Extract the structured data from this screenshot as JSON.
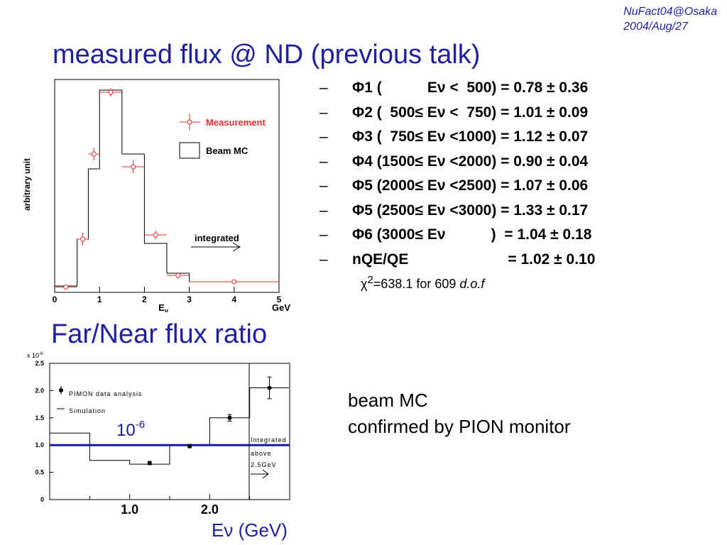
{
  "conference": {
    "line1": "NuFact04@Osaka",
    "line2": "2004/Aug/27"
  },
  "title": "measured flux @ ND (previous talk)",
  "section2_title": "Far/Near flux ratio",
  "colors": {
    "title": "#2020a0",
    "measurement": "#e03030",
    "mc_line": "#000000",
    "ratio_line": "#1a1aa0"
  },
  "bullets": [
    {
      "dash": "–",
      "text": "Φ1 (           Eν <  500) = 0.78 ± 0.36"
    },
    {
      "dash": "–",
      "text": "Φ2 (  500≤ Eν <  750) = 1.01 ± 0.09"
    },
    {
      "dash": "–",
      "text": "Φ3 (  750≤ Eν <1000) = 1.12 ± 0.07"
    },
    {
      "dash": "–",
      "text": "Φ4 (1500≤ Eν <2000) = 0.90 ± 0.04"
    },
    {
      "dash": "–",
      "text": "Φ5 (2000≤ Eν <2500) = 1.07 ± 0.06"
    },
    {
      "dash": "–",
      "text": "Φ5 (2500≤ Eν <3000) = 1.33 ± 0.17"
    },
    {
      "dash": "–",
      "text": "Φ6 (3000≤ Eν           )  = 1.04 ± 0.18"
    },
    {
      "dash": "–",
      "text": "nQE/QE                        = 1.02 ± 0.10"
    }
  ],
  "chi2": {
    "prefix": "χ",
    "sup": "2",
    "text": "=638.1 for 609 ",
    "dof": "d.o.f"
  },
  "note": {
    "line1": "beam MC",
    "line2": "confirmed by PION monitor"
  },
  "chart_data": [
    {
      "type": "bar",
      "ylabel": "arbitrary unit",
      "xlabel_main": "E",
      "xlabel_sub": "ν",
      "xunit": "GeV",
      "xlim": [
        0,
        5
      ],
      "ylim": [
        0,
        1.0
      ],
      "xticks": [
        "0",
        "1",
        "2",
        "3",
        "4",
        "5"
      ],
      "legend": [
        "Measurement",
        "Beam MC"
      ],
      "annotation": "integrated",
      "mc_bins": [
        {
          "x0": 0.0,
          "x1": 0.5,
          "y": 0.03
        },
        {
          "x0": 0.5,
          "x1": 0.75,
          "y": 0.25
        },
        {
          "x0": 0.75,
          "x1": 1.0,
          "y": 0.58
        },
        {
          "x0": 1.0,
          "x1": 1.5,
          "y": 0.95
        },
        {
          "x0": 1.5,
          "x1": 2.0,
          "y": 0.65
        },
        {
          "x0": 2.0,
          "x1": 2.5,
          "y": 0.23
        },
        {
          "x0": 2.5,
          "x1": 3.0,
          "y": 0.09
        },
        {
          "x0": 3.0,
          "x1": 5.0,
          "y": 0.05
        }
      ],
      "measurement": [
        {
          "x": 0.25,
          "y": 0.025,
          "xerr": 0.25,
          "yerr": 0.01
        },
        {
          "x": 0.625,
          "y": 0.25,
          "xerr": 0.125,
          "yerr": 0.03
        },
        {
          "x": 0.875,
          "y": 0.65,
          "xerr": 0.125,
          "yerr": 0.03
        },
        {
          "x": 1.25,
          "y": 0.94,
          "xerr": 0.25,
          "yerr": 0.02
        },
        {
          "x": 1.75,
          "y": 0.59,
          "xerr": 0.25,
          "yerr": 0.03
        },
        {
          "x": 2.25,
          "y": 0.27,
          "xerr": 0.25,
          "yerr": 0.02
        },
        {
          "x": 2.75,
          "y": 0.08,
          "xerr": 0.25,
          "yerr": 0.015
        },
        {
          "x": 4.0,
          "y": 0.05,
          "xerr": 1.0,
          "yerr": 0.0
        }
      ]
    },
    {
      "type": "bar",
      "yscale_label": "x 10",
      "yscale_exp": "-6",
      "ylim": [
        0,
        2.5
      ],
      "yticks": [
        "0",
        "0.5",
        "1.0",
        "1.5",
        "2.0",
        "2.5"
      ],
      "xticks": [
        "1.0",
        "2.0"
      ],
      "xlim": [
        0,
        3.0
      ],
      "xlabel": "Eν (GeV)",
      "legend": [
        "PIMON data analysis",
        "Simulation"
      ],
      "annotation_lines": [
        "Integrated",
        "above",
        "2.5GeV"
      ],
      "reference_label": "10",
      "reference_exp": "-6",
      "reference_value": 1.0,
      "mc_bins": [
        {
          "x0": 0.0,
          "x1": 0.5,
          "y": 1.22
        },
        {
          "x0": 0.5,
          "x1": 1.0,
          "y": 0.72
        },
        {
          "x0": 1.0,
          "x1": 1.5,
          "y": 0.65
        },
        {
          "x0": 1.5,
          "x1": 2.0,
          "y": 1.0
        },
        {
          "x0": 2.0,
          "x1": 2.5,
          "y": 1.5
        },
        {
          "x0": 2.5,
          "x1": 3.0,
          "y": 2.05
        }
      ],
      "measurement": [
        {
          "x": 1.25,
          "y": 0.67,
          "yerr": 0.03
        },
        {
          "x": 1.75,
          "y": 0.98,
          "yerr": 0.03
        },
        {
          "x": 2.25,
          "y": 1.5,
          "yerr": 0.06
        },
        {
          "x": 2.75,
          "y": 2.05,
          "yerr": 0.2
        }
      ]
    }
  ]
}
